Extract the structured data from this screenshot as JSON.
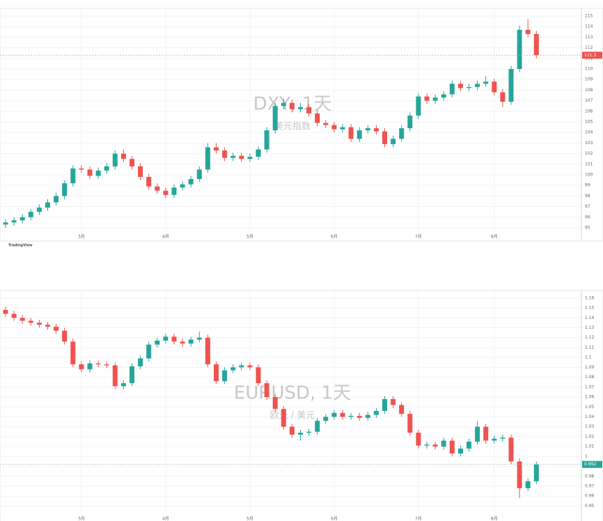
{
  "chart_data": [
    {
      "type": "candlestick",
      "title": "DXY, 1天",
      "subtitle": "美元指数",
      "source": "TradingView",
      "up_color": "#26a69a",
      "down_color": "#ef5350",
      "grid": true,
      "ylim": [
        94.8,
        115.2
      ],
      "yticks": [
        95,
        96,
        97,
        98,
        99,
        100,
        101,
        102,
        103,
        104,
        105,
        106,
        107,
        108,
        109,
        110,
        111,
        112,
        113,
        114,
        115
      ],
      "categories": [
        null,
        null,
        null,
        null,
        null,
        null,
        null,
        null,
        null,
        "3月",
        null,
        null,
        null,
        null,
        null,
        null,
        null,
        null,
        null,
        "4月",
        null,
        null,
        null,
        null,
        null,
        null,
        null,
        null,
        null,
        "5月",
        null,
        null,
        null,
        null,
        null,
        null,
        null,
        null,
        null,
        "6月",
        null,
        null,
        null,
        null,
        null,
        null,
        null,
        null,
        null,
        "7月",
        null,
        null,
        null,
        null,
        null,
        null,
        null,
        null,
        "8月",
        null,
        null,
        null,
        null,
        null
      ],
      "open": [
        95.3,
        95.5,
        95.7,
        96.0,
        96.5,
        96.9,
        97.4,
        98.0,
        99.2,
        100.6,
        100.5,
        99.9,
        100.4,
        100.8,
        102.0,
        101.5,
        100.8,
        99.8,
        98.9,
        98.5,
        98.1,
        98.8,
        99.1,
        99.6,
        100.5,
        102.6,
        102.3,
        101.6,
        101.8,
        101.5,
        101.7,
        102.4,
        104.2,
        106.5,
        106.8,
        106.2,
        106.4,
        105.8,
        104.9,
        104.7,
        104.3,
        104.5,
        103.4,
        104.2,
        104.4,
        104.1,
        102.9,
        103.4,
        104.4,
        105.6,
        107.4,
        107.0,
        107.3,
        107.6,
        108.6,
        108.2,
        108.3,
        108.6,
        108.8,
        107.8,
        106.9,
        110.0,
        113.7,
        113.3
      ],
      "high": [
        95.8,
        96.0,
        96.3,
        96.8,
        97.2,
        97.7,
        98.3,
        99.5,
        100.9,
        100.9,
        100.8,
        100.7,
        101.1,
        102.3,
        102.4,
        101.8,
        101.1,
        100.1,
        99.2,
        98.8,
        99.1,
        99.4,
        99.9,
        100.8,
        103.0,
        103.0,
        102.6,
        102.1,
        102.1,
        102.0,
        102.7,
        104.5,
        106.8,
        107.2,
        107.1,
        106.8,
        106.7,
        106.1,
        105.2,
        105.0,
        104.8,
        104.8,
        104.5,
        104.7,
        104.7,
        104.4,
        103.7,
        104.7,
        105.9,
        107.7,
        107.7,
        107.6,
        107.9,
        108.9,
        108.9,
        108.6,
        108.9,
        109.3,
        109.1,
        108.1,
        110.3,
        114.1,
        114.7,
        113.6
      ],
      "low": [
        95.0,
        95.2,
        95.4,
        95.7,
        96.2,
        96.6,
        97.1,
        97.7,
        98.9,
        100.2,
        99.6,
        99.6,
        100.1,
        100.5,
        101.2,
        100.5,
        99.5,
        98.6,
        98.2,
        97.8,
        97.8,
        98.5,
        98.8,
        99.3,
        100.2,
        102.0,
        101.3,
        101.3,
        101.2,
        101.2,
        101.4,
        102.1,
        103.9,
        106.2,
        105.9,
        105.9,
        105.5,
        104.6,
        104.4,
        104.0,
        104.0,
        103.1,
        103.1,
        103.9,
        103.8,
        102.6,
        102.6,
        103.1,
        104.1,
        105.3,
        106.7,
        106.7,
        107.0,
        107.3,
        107.9,
        107.9,
        108.0,
        108.3,
        107.5,
        106.4,
        106.6,
        109.7,
        113.0,
        111.0
      ],
      "close": [
        95.5,
        95.7,
        96.0,
        96.5,
        96.9,
        97.4,
        98.0,
        99.2,
        100.6,
        100.5,
        99.9,
        100.4,
        100.8,
        102.0,
        101.5,
        100.8,
        99.8,
        98.9,
        98.5,
        98.1,
        98.8,
        99.1,
        99.6,
        100.5,
        102.6,
        102.3,
        101.6,
        101.8,
        101.5,
        101.7,
        102.4,
        104.2,
        106.5,
        106.8,
        106.2,
        106.4,
        105.8,
        104.9,
        104.7,
        104.3,
        104.5,
        103.4,
        104.2,
        104.4,
        104.1,
        102.9,
        103.4,
        104.4,
        105.6,
        107.4,
        107.0,
        107.3,
        107.6,
        108.6,
        108.2,
        108.3,
        108.6,
        108.8,
        107.8,
        106.9,
        110.0,
        113.7,
        113.3,
        111.3
      ]
    },
    {
      "type": "candlestick",
      "title": "EURUSD, 1天",
      "subtitle": "欧元 / 美元",
      "source": "TradingView",
      "up_color": "#26a69a",
      "down_color": "#ef5350",
      "grid": true,
      "ylim": [
        0.944,
        1.162
      ],
      "yticks": [
        0.95,
        0.96,
        0.97,
        0.98,
        0.99,
        1.0,
        1.01,
        1.02,
        1.03,
        1.04,
        1.05,
        1.06,
        1.07,
        1.08,
        1.09,
        1.1,
        1.11,
        1.12,
        1.13,
        1.14,
        1.15,
        1.16
      ],
      "categories": [
        null,
        null,
        null,
        null,
        null,
        null,
        null,
        null,
        null,
        "3月",
        null,
        null,
        null,
        null,
        null,
        null,
        null,
        null,
        null,
        "4月",
        null,
        null,
        null,
        null,
        null,
        null,
        null,
        null,
        null,
        "5月",
        null,
        null,
        null,
        null,
        null,
        null,
        null,
        null,
        null,
        "6月",
        null,
        null,
        null,
        null,
        null,
        null,
        null,
        null,
        null,
        "7月",
        null,
        null,
        null,
        null,
        null,
        null,
        null,
        null,
        "8月",
        null,
        null,
        null,
        null,
        null
      ],
      "open": [
        1.148,
        1.144,
        1.14,
        1.137,
        1.135,
        1.133,
        1.131,
        1.127,
        1.116,
        1.093,
        1.088,
        1.094,
        1.093,
        1.092,
        1.071,
        1.074,
        1.091,
        1.099,
        1.113,
        1.117,
        1.121,
        1.116,
        1.114,
        1.118,
        1.12,
        1.093,
        1.076,
        1.087,
        1.09,
        1.092,
        1.09,
        1.074,
        1.06,
        1.048,
        1.03,
        1.022,
        1.024,
        1.025,
        1.036,
        1.04,
        1.044,
        1.04,
        1.041,
        1.039,
        1.042,
        1.046,
        1.058,
        1.052,
        1.043,
        1.024,
        1.011,
        1.012,
        1.01,
        1.016,
        1.003,
        1.008,
        1.015,
        1.03,
        1.016,
        1.018,
        1.019,
        0.995,
        0.968,
        0.975
      ],
      "high": [
        1.151,
        1.147,
        1.143,
        1.14,
        1.138,
        1.136,
        1.134,
        1.13,
        1.119,
        1.096,
        1.097,
        1.097,
        1.096,
        1.095,
        1.077,
        1.094,
        1.102,
        1.116,
        1.12,
        1.124,
        1.124,
        1.119,
        1.121,
        1.126,
        1.123,
        1.096,
        1.09,
        1.093,
        1.095,
        1.095,
        1.093,
        1.077,
        1.063,
        1.051,
        1.033,
        1.027,
        1.028,
        1.039,
        1.043,
        1.047,
        1.047,
        1.044,
        1.044,
        1.045,
        1.049,
        1.061,
        1.061,
        1.055,
        1.046,
        1.027,
        1.015,
        1.015,
        1.019,
        1.019,
        1.011,
        1.018,
        1.036,
        1.033,
        1.021,
        1.022,
        1.022,
        0.998,
        0.978,
        0.995
      ],
      "low": [
        1.141,
        1.137,
        1.134,
        1.132,
        1.13,
        1.128,
        1.124,
        1.113,
        1.09,
        1.085,
        1.085,
        1.09,
        1.089,
        1.068,
        1.068,
        1.071,
        1.088,
        1.096,
        1.11,
        1.114,
        1.113,
        1.111,
        1.111,
        1.115,
        1.09,
        1.073,
        1.073,
        1.084,
        1.087,
        1.087,
        1.071,
        1.057,
        1.045,
        1.027,
        1.019,
        1.016,
        1.021,
        1.022,
        1.033,
        1.037,
        1.037,
        1.037,
        1.036,
        1.036,
        1.039,
        1.043,
        1.049,
        1.04,
        1.021,
        1.008,
        1.008,
        1.007,
        1.007,
        1.0,
        1.0,
        1.005,
        1.012,
        1.013,
        1.013,
        1.015,
        0.992,
        0.958,
        0.965,
        0.972
      ],
      "close": [
        1.144,
        1.14,
        1.137,
        1.135,
        1.133,
        1.131,
        1.127,
        1.116,
        1.093,
        1.088,
        1.094,
        1.093,
        1.092,
        1.071,
        1.074,
        1.091,
        1.099,
        1.113,
        1.117,
        1.121,
        1.116,
        1.114,
        1.118,
        1.12,
        1.093,
        1.076,
        1.087,
        1.09,
        1.092,
        1.09,
        1.074,
        1.06,
        1.048,
        1.03,
        1.022,
        1.024,
        1.025,
        1.036,
        1.04,
        1.044,
        1.04,
        1.041,
        1.039,
        1.042,
        1.046,
        1.058,
        1.052,
        1.043,
        1.024,
        1.011,
        1.012,
        1.01,
        1.016,
        1.003,
        1.008,
        1.015,
        1.03,
        1.016,
        1.018,
        1.019,
        0.995,
        0.968,
        0.975,
        0.992
      ]
    }
  ]
}
